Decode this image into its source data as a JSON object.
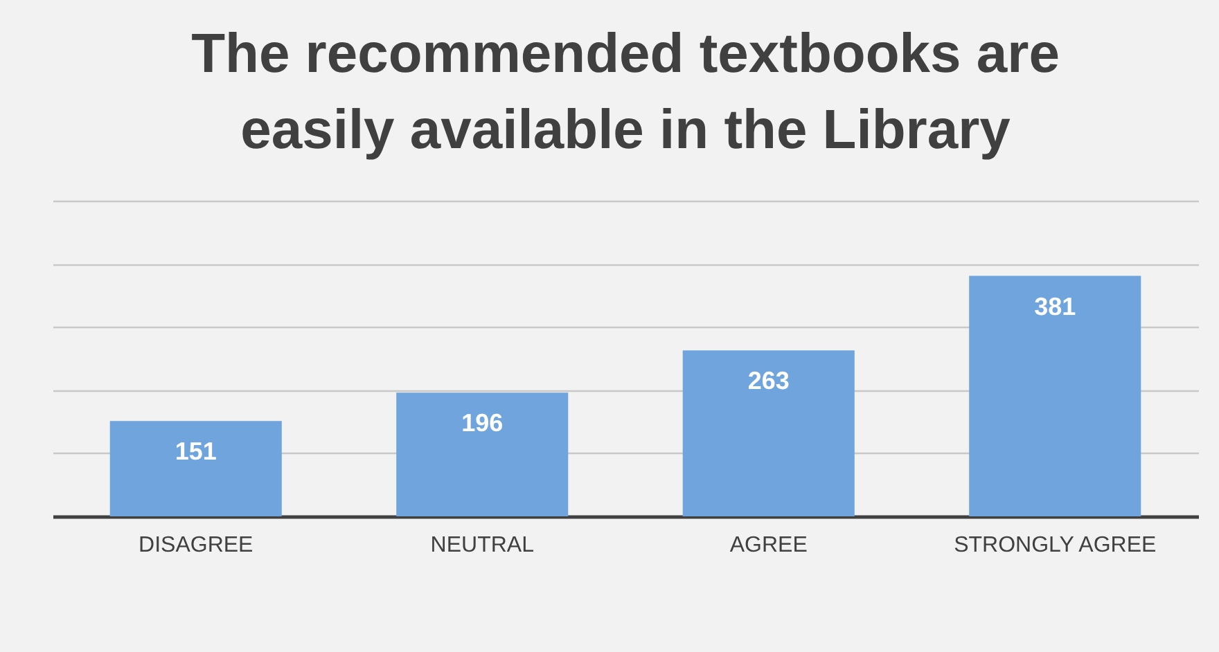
{
  "chart_data": {
    "type": "bar",
    "title": "The recommended textbooks are easily available in the Library",
    "categories": [
      "DISAGREE",
      "NEUTRAL",
      "AGREE",
      "STRONGLY AGREE"
    ],
    "values": [
      151,
      196,
      263,
      381
    ],
    "color": "#6fa5dc",
    "ylim": [
      0,
      500
    ],
    "yticks": [
      {
        "value": 0,
        "label": null
      },
      {
        "value": 100,
        "label": null
      },
      {
        "value": 200,
        "label": null
      },
      {
        "value": 300,
        "label": null
      },
      {
        "value": 400,
        "label": null
      },
      {
        "value": 500,
        "label": null
      }
    ],
    "grid": "y",
    "tick_labels": "x",
    "data_labels": true
  }
}
